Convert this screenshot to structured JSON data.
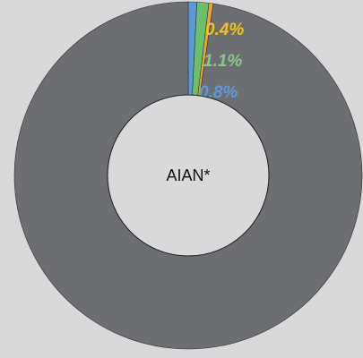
{
  "chart_data": {
    "type": "donut",
    "center_label": "AIAN*",
    "values": [
      0.8,
      1.1,
      0.4,
      97.7
    ],
    "value_labels": [
      "0.8%",
      "1.1%",
      "0.4%",
      null
    ],
    "colors": [
      "#5b9bd5",
      "#6cbf6c",
      "#e8a33a",
      "#6d6e71"
    ],
    "label_colors": [
      "#5b9bd5",
      "#8cc48c",
      "#f2c31c",
      null
    ]
  }
}
